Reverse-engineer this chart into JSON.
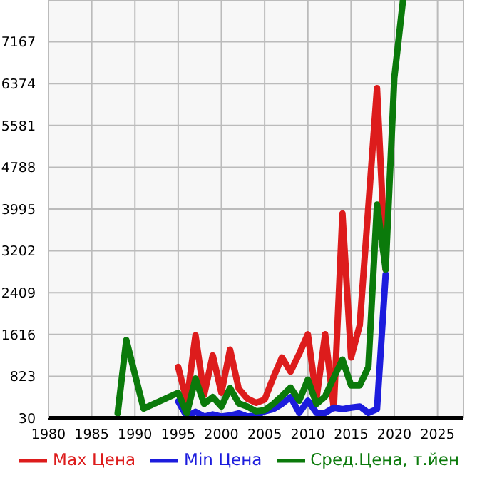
{
  "chart_data": {
    "type": "line",
    "xlim": [
      1980,
      2028
    ],
    "xticks": [
      1980,
      1985,
      1990,
      1995,
      2000,
      2005,
      2010,
      2015,
      2020,
      2025
    ],
    "ylim": [
      30,
      7960
    ],
    "yticks": [
      30,
      823,
      1616,
      2409,
      3202,
      3995,
      4788,
      5581,
      6374,
      7167
    ],
    "grid": true,
    "legend": "bottom",
    "marker": "none",
    "line_style": "solid",
    "series": [
      {
        "name": "Max Цена",
        "color": "#dd1c1c",
        "x": [
          1995,
          1996,
          1997,
          1998,
          1999,
          2000,
          2001,
          2002,
          2003,
          2004,
          2005,
          2006,
          2007,
          2008,
          2009,
          2010,
          2011,
          2012,
          2013,
          2014,
          2015,
          2016,
          2018,
          2019
        ],
        "values": [
          1000,
          350,
          1600,
          470,
          1220,
          510,
          1330,
          590,
          400,
          320,
          380,
          800,
          1180,
          910,
          1250,
          1620,
          400,
          1620,
          220,
          3910,
          1180,
          1790,
          6290,
          2850
        ]
      },
      {
        "name": "Min Цена",
        "color": "#1c1cdd",
        "x": [
          1995,
          1996,
          1997,
          1998,
          1999,
          2000,
          2001,
          2002,
          2003,
          2004,
          2005,
          2006,
          2007,
          2008,
          2009,
          2010,
          2011,
          2012,
          2013,
          2014,
          2015,
          2016,
          2017,
          2018,
          2019
        ],
        "values": [
          350,
          60,
          150,
          60,
          100,
          60,
          80,
          120,
          60,
          80,
          160,
          200,
          300,
          430,
          130,
          360,
          130,
          130,
          230,
          200,
          230,
          250,
          130,
          200,
          2760
        ]
      },
      {
        "name": "Сред.Цена, т.йен",
        "color": "#0b7a0b",
        "x": [
          1988,
          1989,
          1991,
          1995,
          1996,
          1997,
          1998,
          1999,
          2000,
          2001,
          2002,
          2003,
          2004,
          2005,
          2006,
          2007,
          2008,
          2009,
          2010,
          2011,
          2012,
          2013,
          2014,
          2015,
          2016,
          2017,
          2018,
          2019,
          2020,
          2021
        ],
        "values": [
          120,
          1510,
          210,
          510,
          120,
          780,
          300,
          430,
          250,
          600,
          310,
          250,
          160,
          180,
          300,
          450,
          610,
          360,
          760,
          300,
          440,
          800,
          1140,
          650,
          650,
          1000,
          4080,
          2850,
          6480,
          7950
        ]
      }
    ]
  }
}
